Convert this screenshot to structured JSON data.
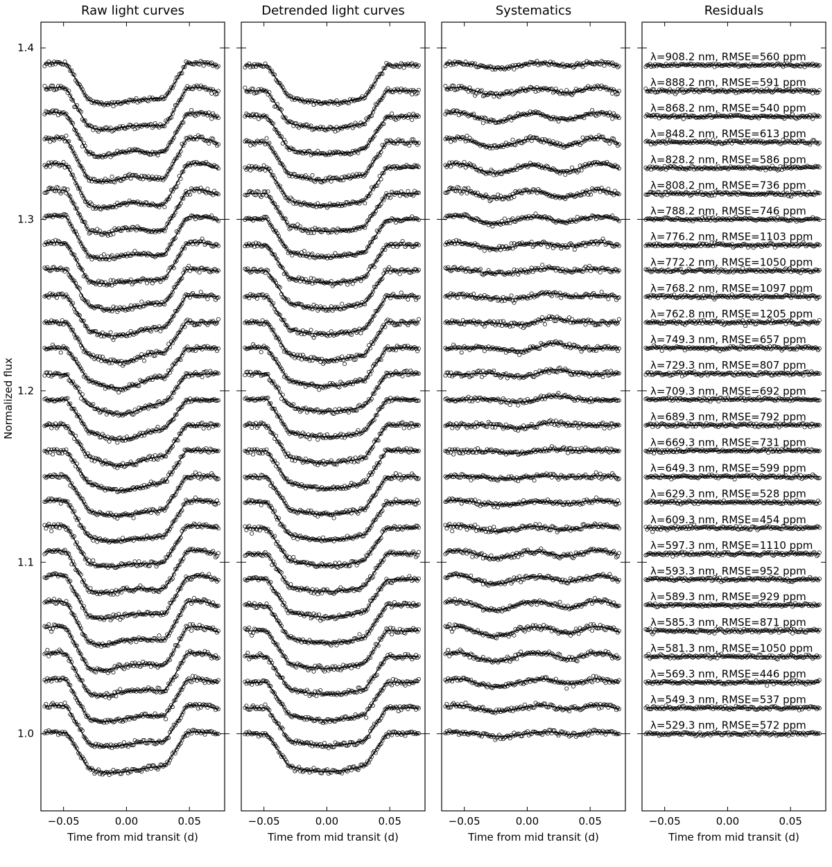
{
  "chart_data": {
    "type": "scatter",
    "ylabel": "Normalized flux",
    "xlabel": "Time from mid transit (d)",
    "xlim": [
      -0.068,
      0.078
    ],
    "ylim": [
      0.955,
      1.415
    ],
    "xticks": [
      -0.05,
      0.0,
      0.05
    ],
    "xtick_labels": [
      "−0.05",
      "0.00",
      "0.05"
    ],
    "yticks": [
      1.0,
      1.1,
      1.2,
      1.3,
      1.4
    ],
    "ytick_labels": [
      "1.0",
      "1.1",
      "1.2",
      "1.3",
      "1.4"
    ],
    "offset_step": 0.015,
    "time_range": [
      -0.065,
      0.073
    ],
    "transit": {
      "t1": -0.0475,
      "t2": -0.0305,
      "t3": 0.0305,
      "t4": 0.0475,
      "depth": 0.022
    },
    "panels": [
      {
        "title": "Raw light curves",
        "content": "raw"
      },
      {
        "title": "Detrended light curves",
        "content": "detrended"
      },
      {
        "title": "Systematics",
        "content": "systematics"
      },
      {
        "title": "Residuals",
        "content": "residuals"
      }
    ],
    "series": [
      {
        "wavelength_nm": "529.3",
        "label": "λ=529.3 nm, RMSE=572 ppm",
        "offset": 1.0
      },
      {
        "wavelength_nm": "549.3",
        "label": "λ=549.3 nm, RMSE=537 ppm",
        "offset": 1.015
      },
      {
        "wavelength_nm": "569.3",
        "label": "λ=569.3 nm, RMSE=446 ppm",
        "offset": 1.03
      },
      {
        "wavelength_nm": "581.3",
        "label": "λ=581.3 nm, RMSE=1050 ppm",
        "offset": 1.045
      },
      {
        "wavelength_nm": "585.3",
        "label": "λ=585.3 nm, RMSE=871 ppm",
        "offset": 1.06
      },
      {
        "wavelength_nm": "589.3",
        "label": "λ=589.3 nm, RMSE=929 ppm",
        "offset": 1.075
      },
      {
        "wavelength_nm": "593.3",
        "label": "λ=593.3 nm, RMSE=952 ppm",
        "offset": 1.09
      },
      {
        "wavelength_nm": "597.3",
        "label": "λ=597.3 nm, RMSE=1110 ppm",
        "offset": 1.105
      },
      {
        "wavelength_nm": "609.3",
        "label": "λ=609.3 nm, RMSE=454 ppm",
        "offset": 1.12
      },
      {
        "wavelength_nm": "629.3",
        "label": "λ=629.3 nm, RMSE=528 ppm",
        "offset": 1.135
      },
      {
        "wavelength_nm": "649.3",
        "label": "λ=649.3 nm, RMSE=599 ppm",
        "offset": 1.15
      },
      {
        "wavelength_nm": "669.3",
        "label": "λ=669.3 nm, RMSE=731 ppm",
        "offset": 1.165
      },
      {
        "wavelength_nm": "689.3",
        "label": "λ=689.3 nm, RMSE=792 ppm",
        "offset": 1.18
      },
      {
        "wavelength_nm": "709.3",
        "label": "λ=709.3 nm, RMSE=692 ppm",
        "offset": 1.195
      },
      {
        "wavelength_nm": "729.3",
        "label": "λ=729.3 nm, RMSE=807 ppm",
        "offset": 1.21
      },
      {
        "wavelength_nm": "749.3",
        "label": "λ=749.3 nm, RMSE=657 ppm",
        "offset": 1.225
      },
      {
        "wavelength_nm": "762.8",
        "label": "λ=762.8 nm, RMSE=1205 ppm",
        "offset": 1.24
      },
      {
        "wavelength_nm": "768.2",
        "label": "λ=768.2 nm, RMSE=1097 ppm",
        "offset": 1.255
      },
      {
        "wavelength_nm": "772.2",
        "label": "λ=772.2 nm, RMSE=1050 ppm",
        "offset": 1.27
      },
      {
        "wavelength_nm": "776.2",
        "label": "λ=776.2 nm, RMSE=1103 ppm",
        "offset": 1.285
      },
      {
        "wavelength_nm": "788.2",
        "label": "λ=788.2 nm, RMSE=746 ppm",
        "offset": 1.3
      },
      {
        "wavelength_nm": "808.2",
        "label": "λ=808.2 nm, RMSE=736 ppm",
        "offset": 1.315
      },
      {
        "wavelength_nm": "828.2",
        "label": "λ=828.2 nm, RMSE=586 ppm",
        "offset": 1.33
      },
      {
        "wavelength_nm": "848.2",
        "label": "λ=848.2 nm, RMSE=613 ppm",
        "offset": 1.345
      },
      {
        "wavelength_nm": "868.2",
        "label": "λ=868.2 nm, RMSE=540 ppm",
        "offset": 1.36
      },
      {
        "wavelength_nm": "888.2",
        "label": "λ=888.2 nm, RMSE=591 ppm",
        "offset": 1.375
      },
      {
        "wavelength_nm": "908.2",
        "label": "λ=908.2 nm, RMSE=560 ppm",
        "offset": 1.39
      }
    ]
  }
}
